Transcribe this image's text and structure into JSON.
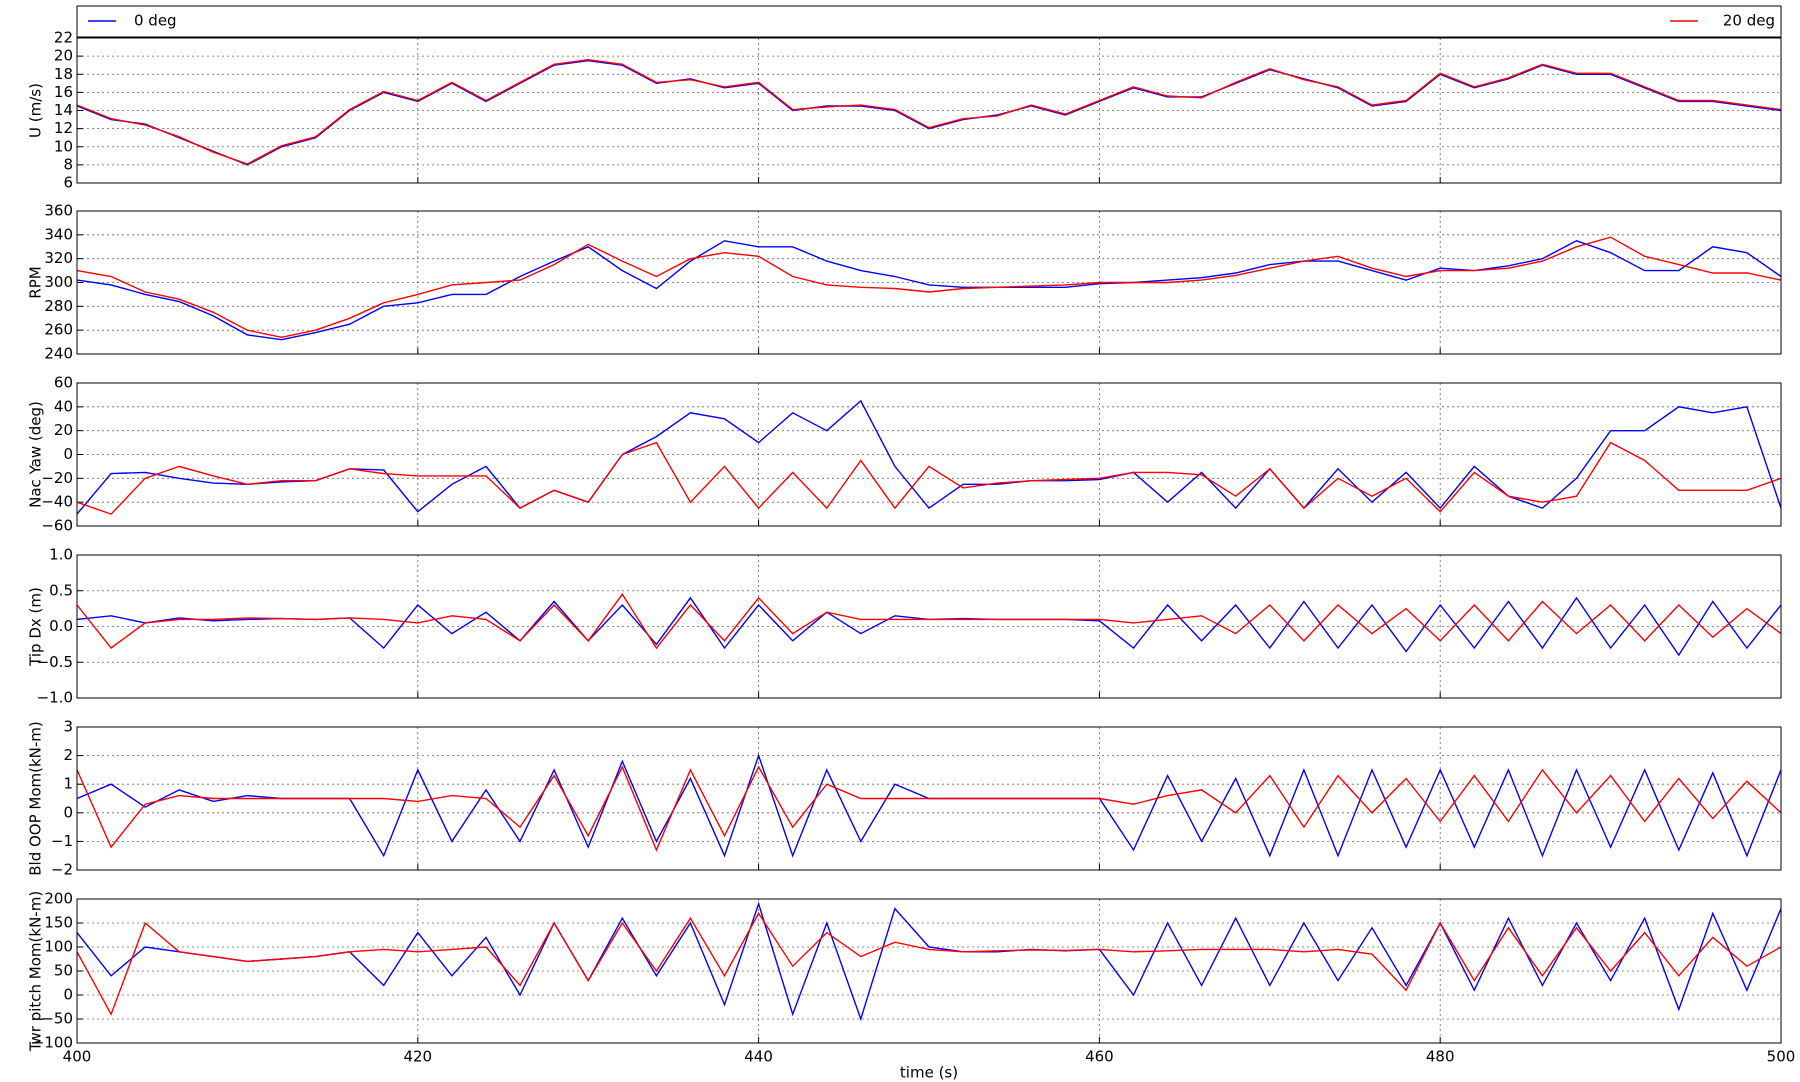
{
  "chart_data": [
    {
      "type": "line",
      "ylabel": "U (m/s)",
      "xlim": [
        400,
        500
      ],
      "xticks": [
        400,
        420,
        440,
        460,
        480,
        500
      ],
      "ylim": [
        6,
        22
      ],
      "yticks": [
        6,
        8,
        10,
        12,
        14,
        16,
        18,
        20,
        22
      ],
      "grid": true,
      "legend": "top",
      "x": [
        400,
        402,
        404,
        406,
        408,
        410,
        412,
        414,
        416,
        418,
        420,
        422,
        424,
        426,
        428,
        430,
        432,
        434,
        436,
        438,
        440,
        442,
        444,
        446,
        448,
        450,
        452,
        454,
        456,
        458,
        460,
        462,
        464,
        466,
        468,
        470,
        472,
        474,
        476,
        478,
        480,
        482,
        484,
        486,
        488,
        490,
        492,
        494,
        496,
        498,
        500
      ],
      "series": [
        {
          "name": "0 deg",
          "color": "#0000ff",
          "values": [
            14.5,
            13,
            12.5,
            11,
            9.5,
            8,
            10,
            11,
            14,
            16,
            15,
            17,
            15,
            17,
            19,
            19.5,
            19,
            17,
            17.5,
            16.5,
            17,
            14,
            14.5,
            14.5,
            14,
            12,
            13,
            13.5,
            14.5,
            13.5,
            15,
            16.5,
            15.5,
            15.5,
            17,
            18.5,
            17.5,
            16.5,
            14.5,
            15,
            18,
            16.5,
            17.5,
            19,
            18,
            18,
            16.5,
            15,
            15,
            14.5,
            14
          ]
        },
        {
          "name": "20 deg",
          "color": "#ff0000",
          "values": [
            14.6,
            13.1,
            12.4,
            11.1,
            9.4,
            8.1,
            10.1,
            11.1,
            14.1,
            16.1,
            15.1,
            17.1,
            15.1,
            17.1,
            19.1,
            19.6,
            19.1,
            17.1,
            17.4,
            16.6,
            17.1,
            14.1,
            14.4,
            14.6,
            14.1,
            12.1,
            13.1,
            13.4,
            14.6,
            13.6,
            15.1,
            16.6,
            15.6,
            15.4,
            17.1,
            18.6,
            17.4,
            16.6,
            14.6,
            15.1,
            18.1,
            16.6,
            17.6,
            19.1,
            18.1,
            18.1,
            16.6,
            15.1,
            15.1,
            14.6,
            14.1
          ]
        }
      ]
    },
    {
      "type": "line",
      "ylabel": "RPM",
      "xlim": [
        400,
        500
      ],
      "xticks": [
        400,
        420,
        440,
        460,
        480,
        500
      ],
      "ylim": [
        240,
        360
      ],
      "yticks": [
        240,
        260,
        280,
        300,
        320,
        340,
        360
      ],
      "grid": true,
      "x": [
        400,
        402,
        404,
        406,
        408,
        410,
        412,
        414,
        416,
        418,
        420,
        422,
        424,
        426,
        428,
        430,
        432,
        434,
        436,
        438,
        440,
        442,
        444,
        446,
        448,
        450,
        452,
        454,
        456,
        458,
        460,
        462,
        464,
        466,
        468,
        470,
        472,
        474,
        476,
        478,
        480,
        482,
        484,
        486,
        488,
        490,
        492,
        494,
        496,
        498,
        500
      ],
      "series": [
        {
          "color": "#0000ff",
          "values": [
            302,
            298,
            290,
            284,
            272,
            256,
            252,
            258,
            265,
            280,
            283,
            290,
            290,
            305,
            318,
            330,
            310,
            295,
            318,
            335,
            330,
            330,
            318,
            310,
            305,
            298,
            296,
            296,
            296,
            296,
            299,
            300,
            302,
            304,
            308,
            315,
            318,
            318,
            310,
            302,
            312,
            310,
            314,
            320,
            335,
            325,
            310,
            310,
            330,
            325,
            305
          ]
        },
        {
          "color": "#ff0000",
          "values": [
            310,
            305,
            292,
            286,
            275,
            260,
            254,
            260,
            270,
            283,
            290,
            298,
            300,
            302,
            315,
            332,
            318,
            305,
            320,
            325,
            322,
            305,
            298,
            296,
            295,
            292,
            295,
            296,
            297,
            298,
            300,
            300,
            300,
            302,
            306,
            312,
            318,
            322,
            312,
            305,
            310,
            310,
            312,
            318,
            330,
            338,
            322,
            315,
            308,
            308,
            302
          ]
        }
      ]
    },
    {
      "type": "line",
      "ylabel": "Nac Yaw (deg)",
      "xlim": [
        400,
        500
      ],
      "xticks": [
        400,
        420,
        440,
        460,
        480,
        500
      ],
      "ylim": [
        -60,
        60
      ],
      "yticks": [
        {
          "value": -60,
          "label": "−60"
        },
        {
          "value": -40,
          "label": "−40"
        },
        {
          "value": -20,
          "label": "−20"
        },
        0,
        20,
        40,
        60
      ],
      "grid": true,
      "x": [
        400,
        402,
        404,
        406,
        408,
        410,
        412,
        414,
        416,
        418,
        420,
        422,
        424,
        426,
        428,
        430,
        432,
        434,
        436,
        438,
        440,
        442,
        444,
        446,
        448,
        450,
        452,
        454,
        456,
        458,
        460,
        462,
        464,
        466,
        468,
        470,
        472,
        474,
        476,
        478,
        480,
        482,
        484,
        486,
        488,
        490,
        492,
        494,
        496,
        498,
        500
      ],
      "series": [
        {
          "color": "#0000ff",
          "values": [
            -50,
            -16,
            -15,
            -20,
            -24,
            -25,
            -23,
            -22,
            -12,
            -13,
            -48,
            -25,
            -10,
            -45,
            -30,
            -40,
            0,
            15,
            35,
            30,
            10,
            35,
            20,
            45,
            -10,
            -45,
            -25,
            -25,
            -22,
            -22,
            -21,
            -15,
            -40,
            -15,
            -45,
            -12,
            -45,
            -12,
            -40,
            -15,
            -45,
            -10,
            -35,
            -45,
            -20,
            20,
            20,
            40,
            35,
            40,
            -45
          ]
        },
        {
          "color": "#ff0000",
          "values": [
            -40,
            -50,
            -20,
            -10,
            -18,
            -25,
            -22,
            -22,
            -12,
            -16,
            -18,
            -18,
            -18,
            -45,
            -30,
            -40,
            0,
            10,
            -40,
            -10,
            -45,
            -15,
            -45,
            -5,
            -45,
            -10,
            -28,
            -24,
            -22,
            -21,
            -20,
            -15,
            -15,
            -17,
            -35,
            -12,
            -45,
            -20,
            -35,
            -20,
            -48,
            -15,
            -35,
            -40,
            -35,
            10,
            -5,
            -30,
            -30,
            -30,
            -20
          ]
        }
      ]
    },
    {
      "type": "line",
      "ylabel": "Tip Dx (m)",
      "xlim": [
        400,
        500
      ],
      "xticks": [
        400,
        420,
        440,
        460,
        480,
        500
      ],
      "ylim": [
        -1,
        1
      ],
      "yticks": [
        {
          "value": -1,
          "label": "−1.0"
        },
        {
          "value": -0.5,
          "label": "−0.5"
        },
        {
          "value": 0,
          "label": "0.0"
        },
        0.5,
        {
          "value": 1,
          "label": "1.0"
        }
      ],
      "grid": true,
      "x": [
        400,
        402,
        404,
        406,
        408,
        410,
        412,
        414,
        416,
        418,
        420,
        422,
        424,
        426,
        428,
        430,
        432,
        434,
        436,
        438,
        440,
        442,
        444,
        446,
        448,
        450,
        452,
        454,
        456,
        458,
        460,
        462,
        464,
        466,
        468,
        470,
        472,
        474,
        476,
        478,
        480,
        482,
        484,
        486,
        488,
        490,
        492,
        494,
        496,
        498,
        500
      ],
      "series": [
        {
          "color": "#0000ff",
          "values": [
            0.1,
            0.15,
            0.05,
            0.12,
            0.08,
            0.1,
            0.11,
            0.1,
            0.12,
            -0.3,
            0.3,
            -0.1,
            0.2,
            -0.2,
            0.35,
            -0.2,
            0.3,
            -0.25,
            0.4,
            -0.3,
            0.3,
            -0.2,
            0.2,
            -0.1,
            0.15,
            0.1,
            0.11,
            0.1,
            0.1,
            0.1,
            0.08,
            -0.3,
            0.3,
            -0.2,
            0.3,
            -0.3,
            0.35,
            -0.3,
            0.3,
            -0.35,
            0.3,
            -0.3,
            0.35,
            -0.3,
            0.4,
            -0.3,
            0.3,
            -0.4,
            0.35,
            -0.3,
            0.3
          ]
        },
        {
          "color": "#ff0000",
          "values": [
            0.3,
            -0.3,
            0.05,
            0.1,
            0.1,
            0.12,
            0.11,
            0.1,
            0.12,
            0.1,
            0.05,
            0.15,
            0.1,
            -0.2,
            0.3,
            -0.2,
            0.45,
            -0.3,
            0.3,
            -0.2,
            0.4,
            -0.1,
            0.2,
            0.1,
            0.1,
            0.1,
            0.1,
            0.1,
            0.1,
            0.1,
            0.1,
            0.05,
            0.1,
            0.15,
            -0.1,
            0.3,
            -0.2,
            0.3,
            -0.1,
            0.25,
            -0.2,
            0.3,
            -0.2,
            0.35,
            -0.1,
            0.3,
            -0.2,
            0.3,
            -0.15,
            0.25,
            -0.1
          ]
        }
      ]
    },
    {
      "type": "line",
      "ylabel": "Bld OOP Mom(kN-m)",
      "xlim": [
        400,
        500
      ],
      "xticks": [
        400,
        420,
        440,
        460,
        480,
        500
      ],
      "ylim": [
        -2,
        3
      ],
      "yticks": [
        {
          "value": -2,
          "label": "−2"
        },
        {
          "value": -1,
          "label": "−1"
        },
        0,
        1,
        2,
        3
      ],
      "grid": true,
      "x": [
        400,
        402,
        404,
        406,
        408,
        410,
        412,
        414,
        416,
        418,
        420,
        422,
        424,
        426,
        428,
        430,
        432,
        434,
        436,
        438,
        440,
        442,
        444,
        446,
        448,
        450,
        452,
        454,
        456,
        458,
        460,
        462,
        464,
        466,
        468,
        470,
        472,
        474,
        476,
        478,
        480,
        482,
        484,
        486,
        488,
        490,
        492,
        494,
        496,
        498,
        500
      ],
      "series": [
        {
          "color": "#0000ff",
          "values": [
            0.5,
            1,
            0.2,
            0.8,
            0.4,
            0.6,
            0.5,
            0.5,
            0.5,
            -1.5,
            1.5,
            -1,
            0.8,
            -1,
            1.5,
            -1.2,
            1.8,
            -1,
            1.2,
            -1.5,
            2,
            -1.5,
            1.5,
            -1,
            1,
            0.5,
            0.5,
            0.5,
            0.5,
            0.5,
            0.5,
            -1.3,
            1.3,
            -1,
            1.2,
            -1.5,
            1.5,
            -1.5,
            1.5,
            -1.2,
            1.5,
            -1.2,
            1.5,
            -1.5,
            1.5,
            -1.2,
            1.5,
            -1.3,
            1.4,
            -1.5,
            1.5
          ]
        },
        {
          "color": "#ff0000",
          "values": [
            1.5,
            -1.2,
            0.3,
            0.6,
            0.5,
            0.5,
            0.5,
            0.5,
            0.5,
            0.5,
            0.4,
            0.6,
            0.5,
            -0.5,
            1.3,
            -0.8,
            1.6,
            -1.3,
            1.5,
            -0.8,
            1.6,
            -0.5,
            1,
            0.5,
            0.5,
            0.5,
            0.5,
            0.5,
            0.5,
            0.5,
            0.5,
            0.3,
            0.6,
            0.8,
            0,
            1.3,
            -0.5,
            1.3,
            0,
            1.2,
            -0.3,
            1.3,
            -0.3,
            1.5,
            0,
            1.3,
            -0.3,
            1.2,
            -0.2,
            1.1,
            0
          ]
        }
      ]
    },
    {
      "type": "line",
      "ylabel": "Twr pitch Mom(kN-m)",
      "xlabel": "time (s)",
      "xlim": [
        400,
        500
      ],
      "xticks": [
        400,
        420,
        440,
        460,
        480,
        500
      ],
      "ylim": [
        -100,
        200
      ],
      "yticks": [
        {
          "value": -100,
          "label": "−100"
        },
        {
          "value": -50,
          "label": "−50"
        },
        0,
        50,
        100,
        150,
        200
      ],
      "grid": true,
      "x": [
        400,
        402,
        404,
        406,
        408,
        410,
        412,
        414,
        416,
        418,
        420,
        422,
        424,
        426,
        428,
        430,
        432,
        434,
        436,
        438,
        440,
        442,
        444,
        446,
        448,
        450,
        452,
        454,
        456,
        458,
        460,
        462,
        464,
        466,
        468,
        470,
        472,
        474,
        476,
        478,
        480,
        482,
        484,
        486,
        488,
        490,
        492,
        494,
        496,
        498,
        500
      ],
      "series": [
        {
          "color": "#0000ff",
          "values": [
            130,
            40,
            100,
            90,
            80,
            70,
            75,
            80,
            90,
            20,
            130,
            40,
            120,
            0,
            150,
            30,
            160,
            40,
            150,
            -20,
            190,
            -40,
            150,
            -50,
            180,
            100,
            90,
            90,
            95,
            92,
            95,
            0,
            150,
            20,
            160,
            20,
            150,
            30,
            140,
            20,
            150,
            10,
            160,
            20,
            150,
            30,
            160,
            -30,
            170,
            10,
            180
          ]
        },
        {
          "color": "#ff0000",
          "values": [
            90,
            -40,
            150,
            90,
            80,
            70,
            75,
            80,
            90,
            95,
            90,
            95,
            100,
            20,
            150,
            30,
            150,
            50,
            160,
            40,
            170,
            60,
            130,
            80,
            110,
            95,
            90,
            92,
            94,
            93,
            95,
            90,
            92,
            95,
            95,
            95,
            90,
            95,
            85,
            10,
            150,
            30,
            140,
            40,
            140,
            50,
            130,
            40,
            120,
            60,
            100
          ]
        }
      ]
    }
  ]
}
